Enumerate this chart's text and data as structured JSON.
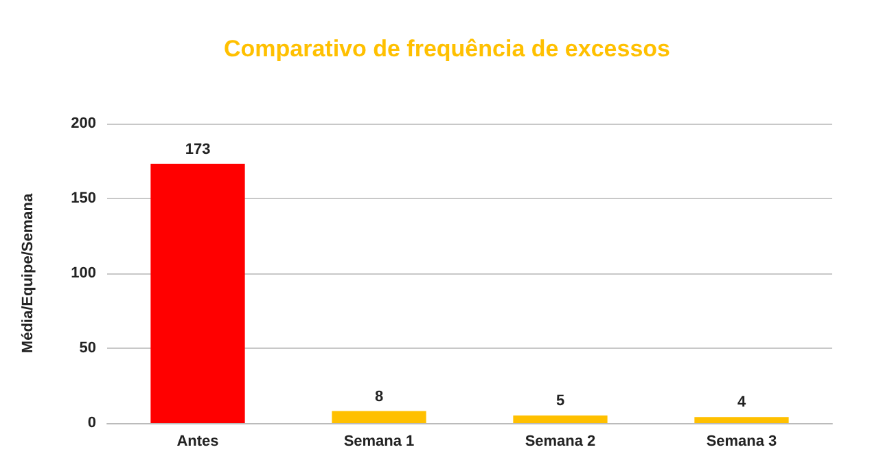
{
  "chart_data": {
    "type": "bar",
    "title": "Comparativo de frequência de excessos",
    "ylabel": "Média/Equipe/Semana",
    "categories": [
      "Antes",
      "Semana 1",
      "Semana 2",
      "Semana 3"
    ],
    "values": [
      173,
      8,
      5,
      4
    ],
    "colors": [
      "#ff0000",
      "#ffc000",
      "#ffc000",
      "#ffc000"
    ],
    "ylim": [
      0,
      200
    ],
    "yticks": [
      0,
      50,
      100,
      150,
      200
    ],
    "grid": "y",
    "data_labels": true
  }
}
